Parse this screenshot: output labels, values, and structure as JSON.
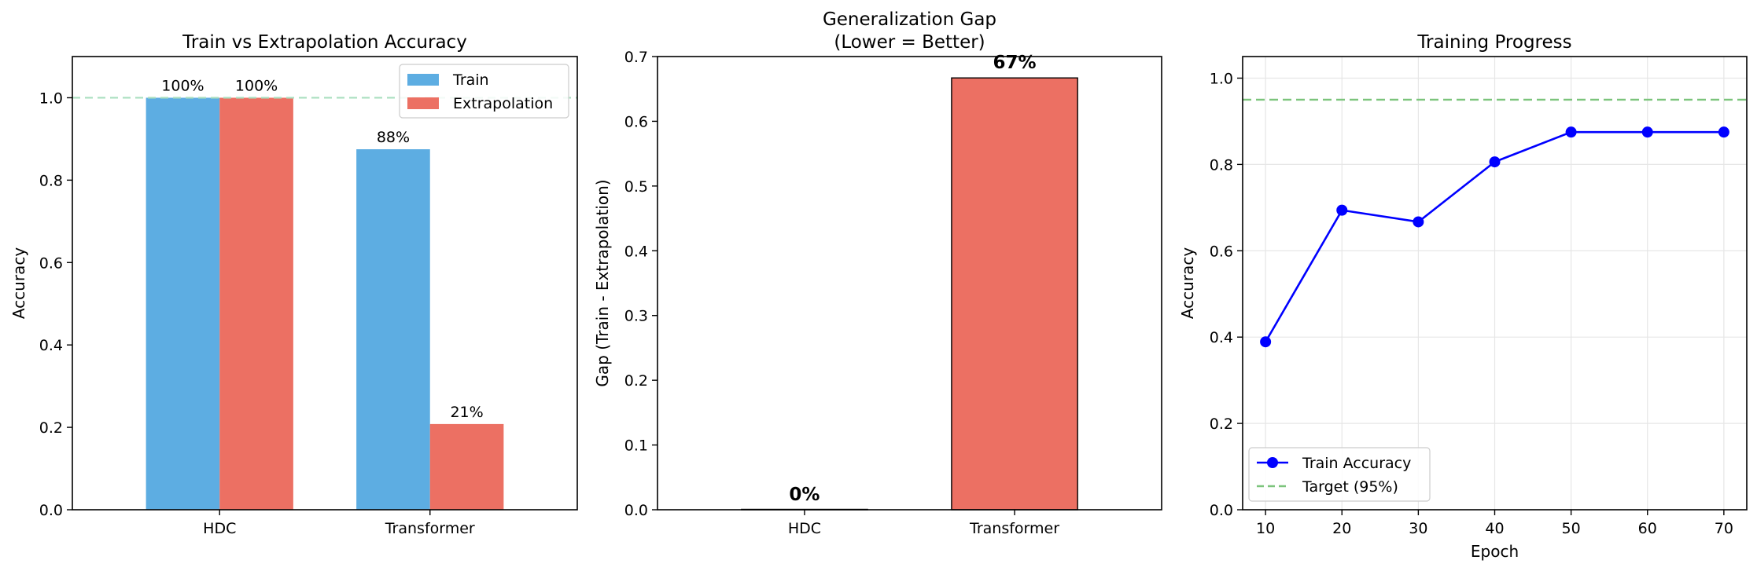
{
  "chart_data": [
    {
      "type": "bar",
      "title": "Train vs Extrapolation Accuracy",
      "xlabel": "",
      "ylabel": "Accuracy",
      "categories": [
        "HDC",
        "Transformer"
      ],
      "series": [
        {
          "name": "Train",
          "values": [
            1.0,
            0.875
          ],
          "labels": [
            "100%",
            "88%"
          ],
          "color": "#5DADE2"
        },
        {
          "name": "Extrapolation",
          "values": [
            1.0,
            0.208
          ],
          "labels": [
            "100%",
            "21%"
          ],
          "color": "#EC7063"
        }
      ],
      "ylim": [
        0,
        1.1
      ],
      "yticks": [
        "0.0",
        "0.2",
        "0.4",
        "0.6",
        "0.8",
        "1.0"
      ],
      "reference_line": {
        "y": 1.0,
        "color": "#A9DFBF",
        "style": "dashed"
      },
      "legend": "top-right",
      "grid": false
    },
    {
      "type": "bar",
      "title": "Generalization Gap",
      "subtitle": "(Lower = Better)",
      "xlabel": "",
      "ylabel": "Gap (Train - Extrapolation)",
      "categories": [
        "HDC",
        "Transformer"
      ],
      "values": [
        0.0,
        0.667
      ],
      "labels": [
        "0%",
        "67%"
      ],
      "colors": [
        "#5DADE2",
        "#EC7063"
      ],
      "ylim": [
        0,
        0.7
      ],
      "yticks": [
        "0.0",
        "0.1",
        "0.2",
        "0.3",
        "0.4",
        "0.5",
        "0.6",
        "0.7"
      ],
      "grid": false
    },
    {
      "type": "line",
      "title": "Training Progress",
      "xlabel": "Epoch",
      "ylabel": "Accuracy",
      "x": [
        10,
        20,
        30,
        40,
        50,
        60,
        70
      ],
      "xticks": [
        "10",
        "20",
        "30",
        "40",
        "50",
        "60",
        "70"
      ],
      "series": [
        {
          "name": "Train Accuracy",
          "values": [
            0.389,
            0.694,
            0.667,
            0.806,
            0.875,
            0.875,
            0.875
          ],
          "color": "#0000FF"
        }
      ],
      "target": {
        "name": "Target (95%)",
        "y": 0.95,
        "color": "#7CC47C",
        "style": "dashed"
      },
      "xlim": [
        7,
        73
      ],
      "ylim": [
        0,
        1.05
      ],
      "yticks": [
        "0.0",
        "0.2",
        "0.4",
        "0.6",
        "0.8",
        "1.0"
      ],
      "legend": "lower-left",
      "grid": true
    }
  ]
}
